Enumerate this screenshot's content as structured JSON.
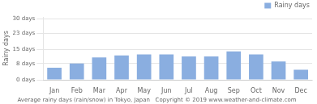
{
  "chart_data": {
    "type": "bar",
    "categories": [
      "Jan",
      "Feb",
      "Mar",
      "Apr",
      "May",
      "Jun",
      "Jul",
      "Aug",
      "Sep",
      "Oct",
      "Nov",
      "Dec"
    ],
    "series": [
      {
        "name": "Rainy days",
        "color": "#8aaee0",
        "values": [
          6.0,
          8.0,
          11.0,
          12.0,
          12.5,
          12.5,
          11.5,
          11.5,
          14.0,
          12.5,
          9.0,
          5.0
        ]
      }
    ],
    "ylabel": "Rainy days",
    "ylim": [
      0,
      31
    ],
    "yticks": [
      {
        "value": 0,
        "label": "0 days"
      },
      {
        "value": 8,
        "label": "8 days"
      },
      {
        "value": 15,
        "label": "15 days"
      },
      {
        "value": 23,
        "label": "23 days"
      },
      {
        "value": 30,
        "label": "30 days"
      }
    ],
    "grid": true,
    "legend": "upper right",
    "caption": "Average rainy days (rain/snow) in Tokyo, Japan   Copyright © 2019 www.weather-and-climate.com"
  }
}
